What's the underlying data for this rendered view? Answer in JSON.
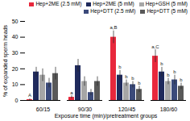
{
  "chart_data": {
    "type": "bar",
    "x_label": "Exposure time (min)/pretreatment groups",
    "y_label": "% of expanded sperm heads",
    "categories": [
      "60/15",
      "90/30",
      "120/45",
      "180/60"
    ],
    "series": [
      {
        "name": "Hep+2ME (2.5 mM)",
        "color": "#e8283c",
        "values": [
          0.5,
          2,
          40,
          28
        ],
        "errors": [
          0.5,
          1,
          4,
          4
        ]
      },
      {
        "name": "Hep+2ME (5 mM)",
        "color": "#1f2a5c",
        "values": [
          18,
          22,
          16,
          18
        ],
        "errors": [
          3,
          4,
          3,
          3
        ]
      },
      {
        "name": "Hep+GSH (5 mM)",
        "color": "#a6a6a6",
        "values": [
          16,
          12,
          11,
          12
        ],
        "errors": [
          4,
          3,
          2,
          2
        ]
      },
      {
        "name": "Hep+DTT (2.5 mM)",
        "color": "#3b4a7a",
        "values": [
          11,
          5,
          10,
          13
        ],
        "errors": [
          3,
          2,
          2,
          3
        ]
      },
      {
        "name": "Hep+DTT (5 mM)",
        "color": "#595959",
        "values": [
          17,
          12,
          7,
          9
        ],
        "errors": [
          4,
          3,
          2,
          2
        ]
      }
    ],
    "annotations": [
      {
        "category": "60/15",
        "series": "Hep+2ME (2.5 mM)",
        "text": "A"
      },
      {
        "category": "90/30",
        "series": "Hep+2ME (2.5 mM)",
        "text": "a"
      },
      {
        "category": "120/45",
        "series": "Hep+2ME (2.5 mM)",
        "text": "a,B"
      },
      {
        "category": "180/60",
        "series": "Hep+2ME (2.5 mM)",
        "text": "a,C"
      },
      {
        "category": "120/45",
        "series": "Hep+2ME (5 mM)",
        "text": "b"
      },
      {
        "category": "120/45",
        "series": "Hep+GSH (5 mM)",
        "text": "b"
      },
      {
        "category": "120/45",
        "series": "Hep+DTT (2.5 mM)",
        "text": "b"
      },
      {
        "category": "120/45",
        "series": "Hep+DTT (5 mM)",
        "text": "b"
      },
      {
        "category": "180/60",
        "series": "Hep+2ME (5 mM)",
        "text": "b"
      },
      {
        "category": "180/60",
        "series": "Hep+GSH (5 mM)",
        "text": "b"
      },
      {
        "category": "180/60",
        "series": "Hep+DTT (2.5 mM)",
        "text": "b"
      },
      {
        "category": "180/60",
        "series": "Hep+DTT (5 mM)",
        "text": "b"
      }
    ],
    "ylim": [
      0,
      50
    ],
    "yticks": [
      0,
      10,
      20,
      30,
      40,
      50
    ],
    "legend": "top"
  }
}
